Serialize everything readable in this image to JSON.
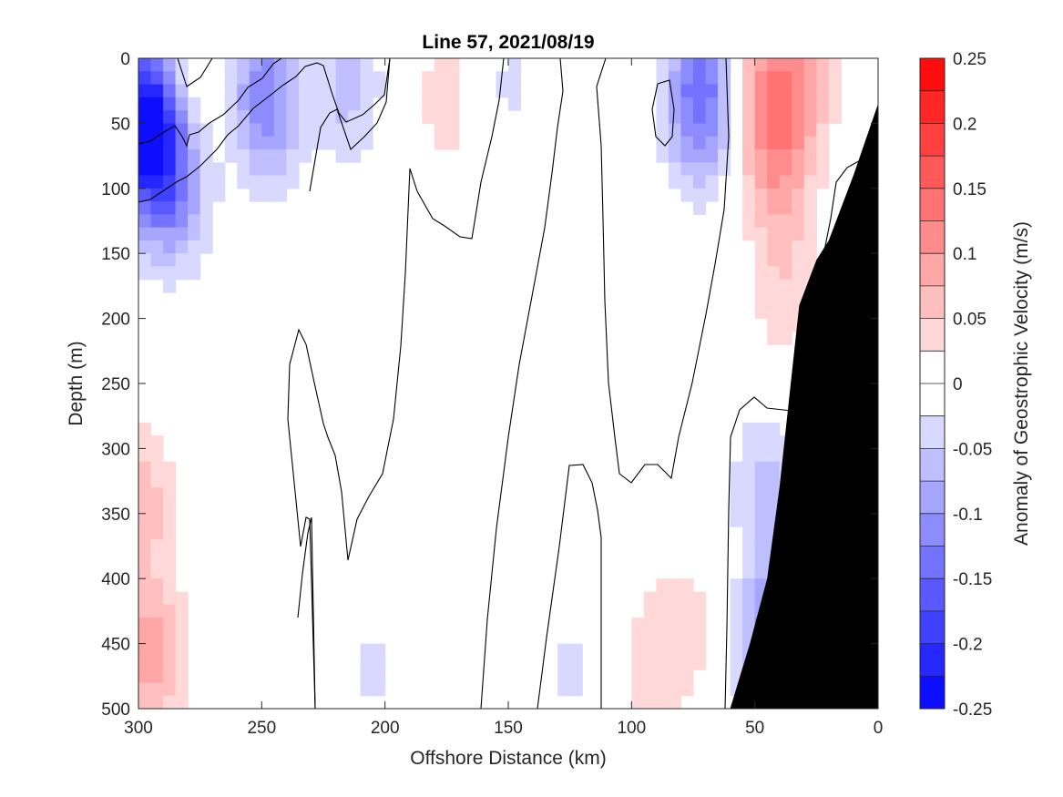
{
  "chart_data": {
    "type": "heatmap",
    "title": "Line 57, 2021/08/19",
    "xlabel": "Offshore Distance (km)",
    "ylabel": "Depth (m)",
    "colorbar_label": "Anomaly of Geostrophic Velocity (m/s)",
    "xlim": [
      300,
      0
    ],
    "ylim": [
      0,
      500
    ],
    "x_reversed": true,
    "y_reversed": true,
    "x_ticks": [
      300,
      250,
      200,
      150,
      100,
      50,
      0
    ],
    "y_ticks": [
      0,
      50,
      100,
      150,
      200,
      250,
      300,
      350,
      400,
      450,
      500
    ],
    "colorbar_ticks": [
      "0.25",
      "0.2",
      "0.15",
      "0.1",
      "0.05",
      "0",
      "-0.05",
      "-0.1",
      "-0.15",
      "-0.2",
      "-0.25"
    ],
    "color_range": [
      -0.25,
      0.25
    ],
    "color_levels": 20,
    "colormap": {
      "negative": "#0000ff",
      "zero": "#ffffff",
      "positive": "#ff0000"
    },
    "zero_contour": "black",
    "bathymetry_fill": "#000000",
    "seafloor_depth_profile": [
      [
        0,
        35
      ],
      [
        10,
        90
      ],
      [
        20,
        140
      ],
      [
        25,
        155
      ],
      [
        32,
        190
      ],
      [
        36,
        260
      ],
      [
        40,
        330
      ],
      [
        45,
        400
      ],
      [
        52,
        450
      ],
      [
        60,
        500
      ]
    ],
    "velocity_anomalies": [
      {
        "x": 298,
        "y": 45,
        "v": -0.22
      },
      {
        "x": 290,
        "y": 90,
        "v": -0.12
      },
      {
        "x": 280,
        "y": 115,
        "v": -0.03
      },
      {
        "x": 250,
        "y": 20,
        "v": -0.09
      },
      {
        "x": 245,
        "y": 55,
        "v": -0.04
      },
      {
        "x": 215,
        "y": 20,
        "v": -0.06
      },
      {
        "x": 275,
        "y": 5,
        "v": 0.03
      },
      {
        "x": 175,
        "y": 30,
        "v": 0.04
      },
      {
        "x": 150,
        "y": 20,
        "v": -0.03
      },
      {
        "x": 72,
        "y": 20,
        "v": -0.12
      },
      {
        "x": 72,
        "y": 60,
        "v": -0.04
      },
      {
        "x": 45,
        "y": 25,
        "v": 0.1
      },
      {
        "x": 40,
        "y": 90,
        "v": 0.07
      },
      {
        "x": 38,
        "y": 180,
        "v": 0.04
      },
      {
        "x": 30,
        "y": 15,
        "v": 0.06
      },
      {
        "x": 298,
        "y": 340,
        "v": 0.06
      },
      {
        "x": 295,
        "y": 460,
        "v": 0.09
      },
      {
        "x": 205,
        "y": 470,
        "v": -0.03
      },
      {
        "x": 125,
        "y": 470,
        "v": -0.03
      },
      {
        "x": 80,
        "y": 440,
        "v": 0.04
      },
      {
        "x": 95,
        "y": 470,
        "v": 0.03
      },
      {
        "x": 45,
        "y": 330,
        "v": -0.06
      },
      {
        "x": 42,
        "y": 450,
        "v": -0.13
      }
    ]
  }
}
